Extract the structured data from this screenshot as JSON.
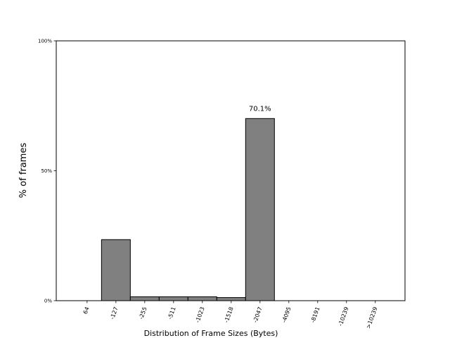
{
  "chart_data": {
    "type": "bar",
    "x_label": "Distribution of Frame Sizes (Bytes)",
    "y_label": "% of frames",
    "categories": [
      "64",
      "-127",
      "-255",
      "-511",
      "-1023",
      "-1518",
      "-2047",
      "-4095",
      "-8191",
      "-10239",
      ">10239"
    ],
    "values": [
      0,
      23.5,
      1.5,
      1.5,
      1.5,
      1.2,
      70.1,
      0,
      0,
      0,
      0
    ],
    "value_labels": [
      null,
      null,
      null,
      null,
      null,
      null,
      "70.1%",
      null,
      null,
      null,
      null
    ],
    "color": "#808080",
    "edgecolor": "#000000",
    "ylim": [
      0,
      100
    ],
    "yticks": [
      {
        "value": 0,
        "label": "0%"
      },
      {
        "value": 50,
        "label": "50%"
      },
      {
        "value": 100,
        "label": "100%"
      }
    ],
    "grid": false
  }
}
